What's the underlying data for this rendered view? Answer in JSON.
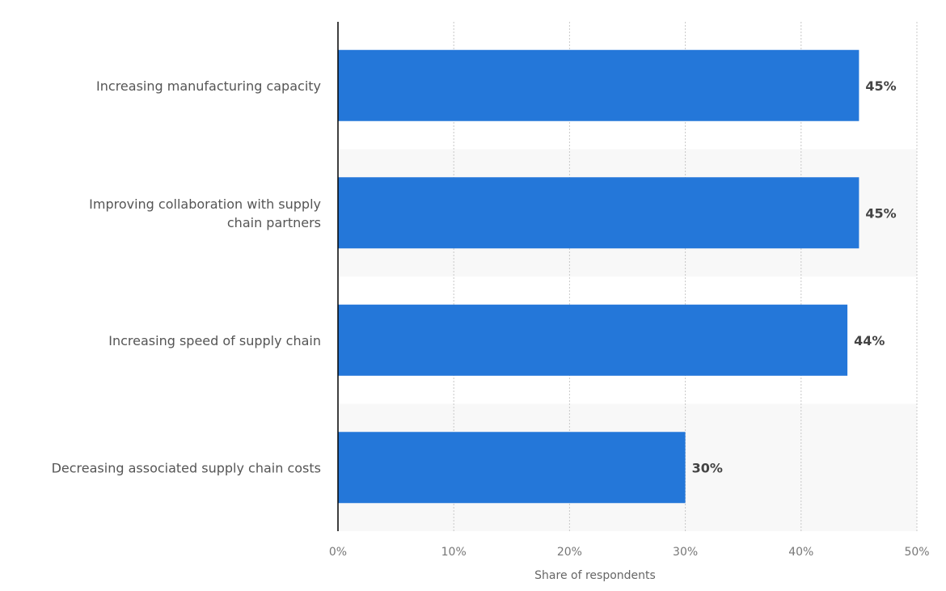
{
  "chart_data": {
    "type": "bar",
    "orientation": "horizontal",
    "categories": [
      [
        "Increasing manufacturing capacity"
      ],
      [
        "Improving collaboration with supply",
        "chain partners"
      ],
      [
        "Increasing speed of supply chain"
      ],
      [
        "Decreasing associated supply chain costs"
      ]
    ],
    "values": [
      45,
      45,
      44,
      30
    ],
    "data_labels": [
      "45%",
      "45%",
      "44%",
      "30%"
    ],
    "xlabel": "Share of respondents",
    "ylabel": "",
    "xlim": [
      0,
      50
    ],
    "ticks": [
      0,
      10,
      20,
      30,
      40,
      50
    ],
    "tick_labels": [
      "0%",
      "10%",
      "20%",
      "30%",
      "40%",
      "50%"
    ],
    "grid": true,
    "colors": {
      "bar": "#2477d9",
      "band": "#f8f8f8",
      "grid": "#c8c8c8",
      "axis": "#000000"
    }
  }
}
